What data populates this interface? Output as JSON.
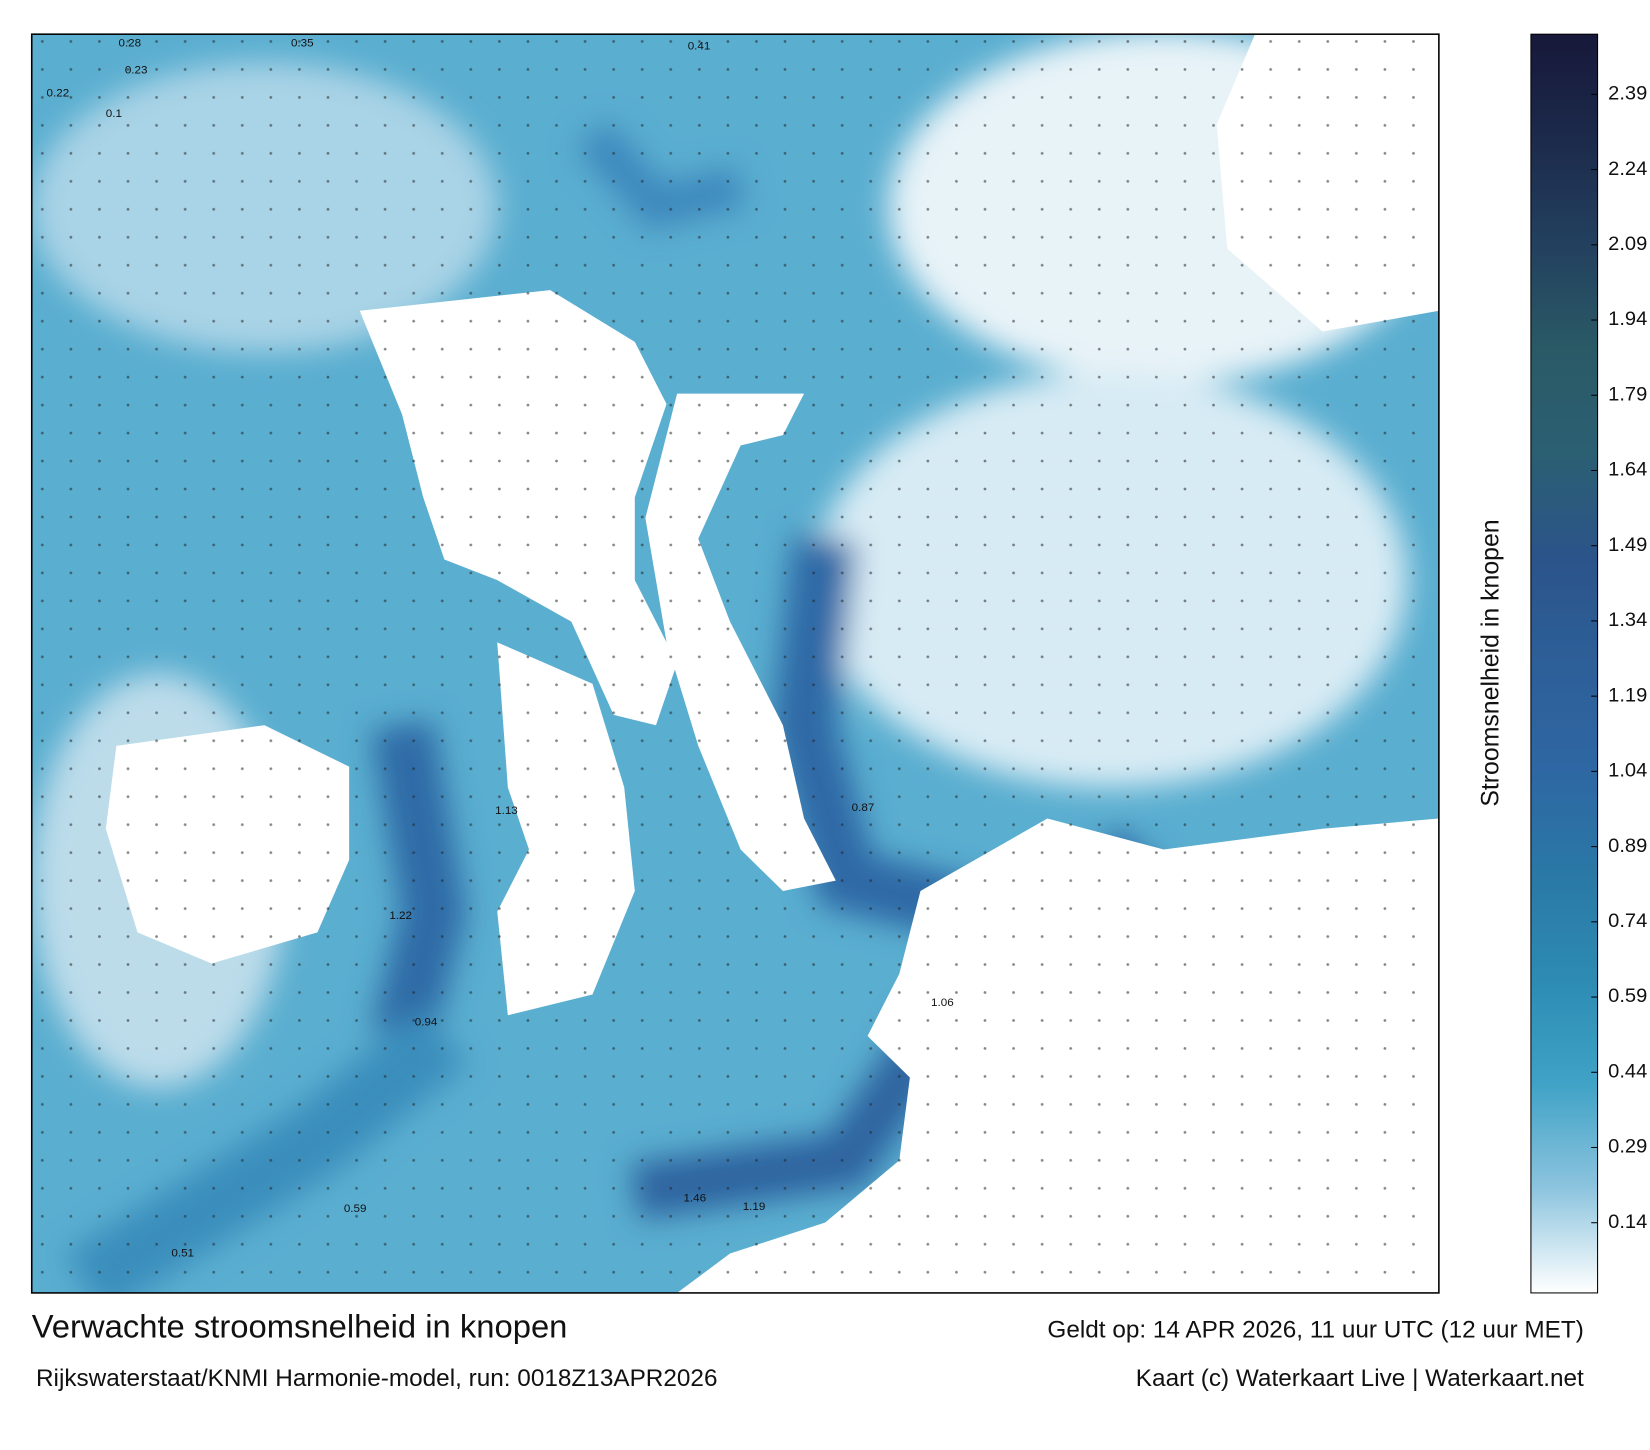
{
  "map": {
    "type": "colorbar",
    "clim": [
      0,
      2.51
    ],
    "ticks": [
      0.14,
      0.29,
      0.44,
      0.59,
      0.74,
      0.89,
      1.04,
      1.19,
      1.34,
      1.49,
      1.64,
      1.79,
      1.94,
      2.09,
      2.24,
      2.39
    ],
    "colorscale": [
      "#ffffff",
      "#8cc4de",
      "#3fa2c6",
      "#2d8bb3",
      "#2a78a6",
      "#2e67a3",
      "#2d5f98",
      "#2b548a",
      "#2b5f72",
      "#2a5a66",
      "#23405f",
      "#1c2a4b",
      "#17183a"
    ],
    "colorbar_label": "Stroomsnelheid in knopen",
    "title": "Verwachte stroomsnelheid in knopen",
    "subtitle": "Rijkswaterstaat/KNMI Harmonie-model, run: 0018Z13APR2026",
    "valid": "Geldt op: 14 APR 2026, 11 uur UTC (12 uur MET)",
    "credit": "Kaart (c) Waterkaart Live | Waterkaart.net",
    "speed_labels": [
      "0.28",
      "0.23",
      "0.22",
      "0.35",
      "0.41",
      "0.1",
      "1.22",
      "1.46",
      "1.19",
      "1.06",
      "0.94",
      "0.51",
      "0.87",
      "0.59",
      "1.13"
    ]
  }
}
